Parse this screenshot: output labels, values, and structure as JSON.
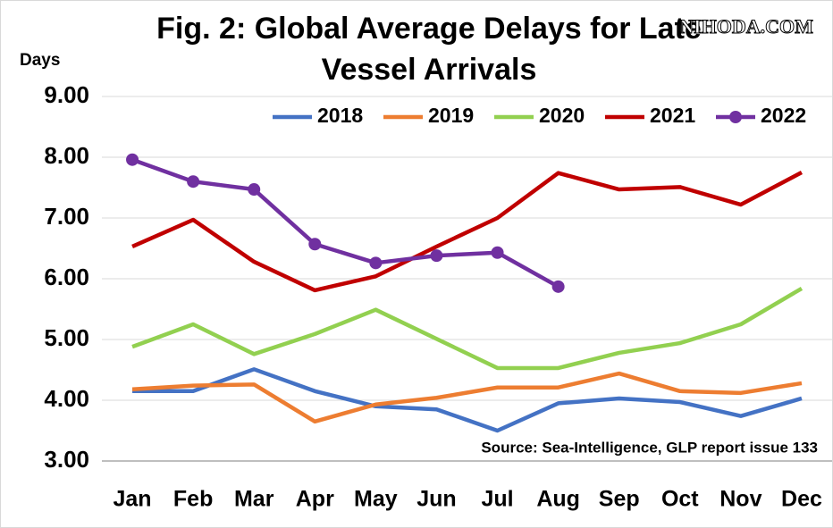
{
  "chart_data": {
    "type": "line",
    "title": [
      "Fig. 2: Global Average Delays for Late",
      "Vessel Arrivals"
    ],
    "y_label": "Days",
    "watermark": "NIHODA.COM",
    "annotation": "Source: Sea-Intelligence, GLP report issue 133",
    "categories": [
      "Jan",
      "Feb",
      "Mar",
      "Apr",
      "May",
      "Jun",
      "Jul",
      "Aug",
      "Sep",
      "Oct",
      "Nov",
      "Dec"
    ],
    "series": [
      {
        "name": "2018",
        "color": "#4472c4",
        "marker": false,
        "values": [
          4.15,
          4.15,
          4.51,
          4.15,
          3.9,
          3.85,
          3.5,
          3.95,
          4.03,
          3.97,
          3.74,
          4.03
        ]
      },
      {
        "name": "2019",
        "color": "#ed7d31",
        "marker": false,
        "values": [
          4.18,
          4.24,
          4.26,
          3.65,
          3.93,
          4.04,
          4.21,
          4.21,
          4.44,
          4.15,
          4.12,
          4.28
        ]
      },
      {
        "name": "2020",
        "color": "#92d050",
        "marker": false,
        "values": [
          4.88,
          5.25,
          4.76,
          5.09,
          5.49,
          5.01,
          4.53,
          4.53,
          4.78,
          4.94,
          5.25,
          5.84
        ]
      },
      {
        "name": "2021",
        "color": "#c00000",
        "marker": false,
        "values": [
          6.53,
          6.97,
          6.28,
          5.81,
          6.04,
          6.53,
          7.0,
          7.74,
          7.47,
          7.51,
          7.22,
          7.75
        ]
      },
      {
        "name": "2022",
        "color": "#7030a0",
        "marker": true,
        "values": [
          7.96,
          7.6,
          7.47,
          6.57,
          6.26,
          6.38,
          6.43,
          5.87,
          null,
          null,
          null,
          null
        ]
      }
    ],
    "ylim": [
      3,
      9
    ],
    "yticks": [
      {
        "value": 3,
        "label": "3.00"
      },
      {
        "value": 4,
        "label": "4.00"
      },
      {
        "value": 5,
        "label": "5.00"
      },
      {
        "value": 6,
        "label": "6.00"
      },
      {
        "value": 7,
        "label": "7.00"
      },
      {
        "value": 8,
        "label": "8.00"
      },
      {
        "value": 9,
        "label": "9.00"
      }
    ],
    "grid": true,
    "legend": "top"
  }
}
